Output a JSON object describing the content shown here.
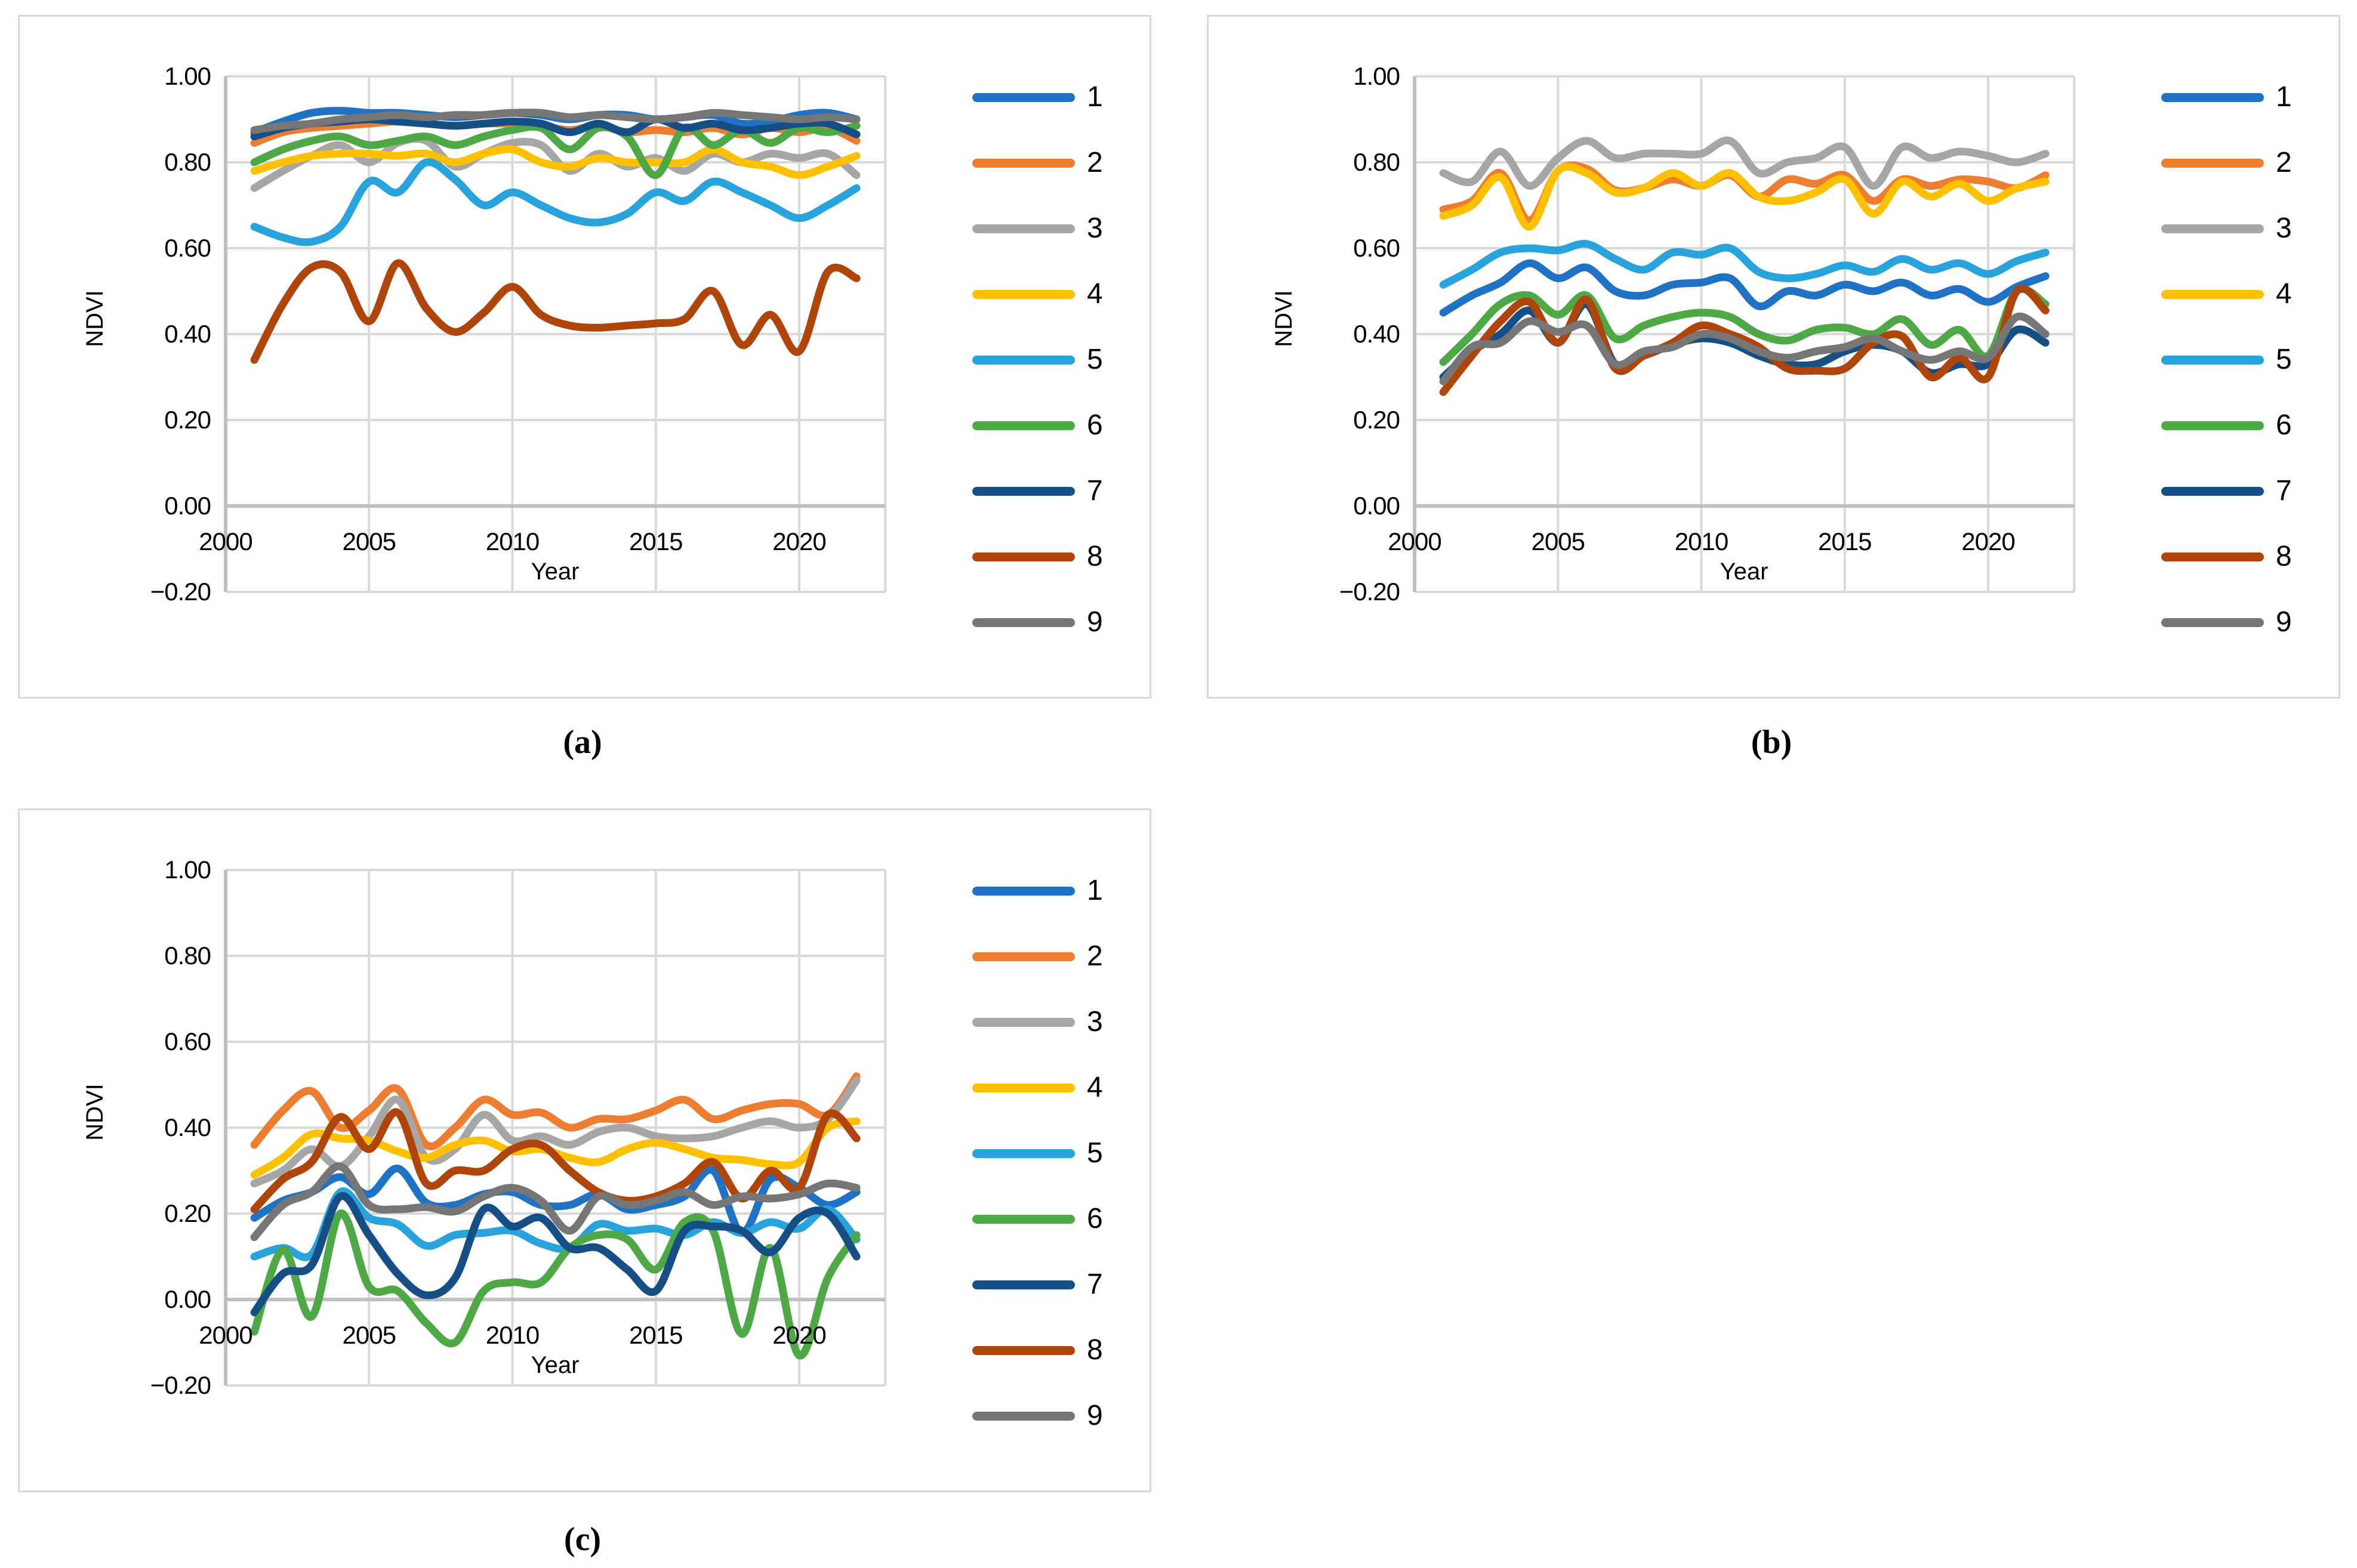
{
  "figure": {
    "background": "#FFFFFF",
    "grid_color": "#D9D9D9",
    "axis_color": "#BFBFBF",
    "text_color": "#000000",
    "y_axis": {
      "label": "NDVI",
      "tick_labels": [
        "1.00",
        "0.80",
        "0.60",
        "0.40",
        "0.20",
        "0.00",
        "−0.20"
      ],
      "tick_values": [
        1.0,
        0.8,
        0.6,
        0.4,
        0.2,
        0.0,
        -0.2
      ]
    },
    "x_axis": {
      "label": "Year",
      "tick_labels": [
        "2000",
        "2005",
        "2010",
        "2015",
        "2020"
      ],
      "tick_values": [
        2000,
        2005,
        2010,
        2015,
        2020
      ]
    },
    "legend": [
      {
        "label": "1",
        "color": "#1F72C4"
      },
      {
        "label": "2",
        "color": "#ED7D31"
      },
      {
        "label": "3",
        "color": "#A6A6A6"
      },
      {
        "label": "4",
        "color": "#FFC000"
      },
      {
        "label": "5",
        "color": "#29A3DC"
      },
      {
        "label": "6",
        "color": "#4EA846"
      },
      {
        "label": "7",
        "color": "#164F86"
      },
      {
        "label": "8",
        "color": "#B0450C"
      },
      {
        "label": "9",
        "color": "#767676"
      }
    ],
    "panels": [
      {
        "caption": "(a)"
      },
      {
        "caption": "(b)"
      },
      {
        "caption": "(c)"
      }
    ]
  },
  "chart_data": [
    {
      "type": "line",
      "panel": "a",
      "title": "",
      "xlabel": "Year",
      "ylabel": "NDVI",
      "xlim": [
        2000,
        2023
      ],
      "ylim": [
        -0.2,
        1.0
      ],
      "grid": true,
      "legend_position": "right",
      "x": [
        2001,
        2002,
        2003,
        2004,
        2005,
        2006,
        2007,
        2008,
        2009,
        2010,
        2011,
        2012,
        2013,
        2014,
        2015,
        2016,
        2017,
        2018,
        2019,
        2020,
        2021,
        2022
      ],
      "series": [
        {
          "name": "1",
          "color": "#1F72C4",
          "values": [
            0.87,
            0.895,
            0.915,
            0.92,
            0.915,
            0.915,
            0.91,
            0.905,
            0.91,
            0.915,
            0.91,
            0.9,
            0.91,
            0.91,
            0.9,
            0.905,
            0.91,
            0.89,
            0.895,
            0.91,
            0.915,
            0.9
          ]
        },
        {
          "name": "2",
          "color": "#ED7D31",
          "values": [
            0.845,
            0.87,
            0.88,
            0.885,
            0.89,
            0.895,
            0.89,
            0.885,
            0.89,
            0.89,
            0.885,
            0.875,
            0.885,
            0.87,
            0.875,
            0.87,
            0.88,
            0.865,
            0.88,
            0.87,
            0.88,
            0.85
          ]
        },
        {
          "name": "3",
          "color": "#A6A6A6",
          "values": [
            0.74,
            0.78,
            0.815,
            0.84,
            0.8,
            0.845,
            0.85,
            0.79,
            0.82,
            0.845,
            0.84,
            0.78,
            0.82,
            0.79,
            0.81,
            0.78,
            0.82,
            0.8,
            0.82,
            0.81,
            0.82,
            0.77
          ]
        },
        {
          "name": "4",
          "color": "#FFC000",
          "values": [
            0.78,
            0.8,
            0.815,
            0.82,
            0.82,
            0.815,
            0.82,
            0.8,
            0.82,
            0.83,
            0.8,
            0.79,
            0.81,
            0.8,
            0.8,
            0.8,
            0.83,
            0.8,
            0.79,
            0.77,
            0.79,
            0.815
          ]
        },
        {
          "name": "5",
          "color": "#29A3DC",
          "values": [
            0.65,
            0.625,
            0.615,
            0.65,
            0.755,
            0.73,
            0.8,
            0.76,
            0.7,
            0.73,
            0.7,
            0.67,
            0.66,
            0.68,
            0.73,
            0.71,
            0.755,
            0.73,
            0.7,
            0.67,
            0.7,
            0.74
          ]
        },
        {
          "name": "6",
          "color": "#4EA846",
          "values": [
            0.8,
            0.83,
            0.85,
            0.86,
            0.84,
            0.85,
            0.86,
            0.84,
            0.86,
            0.875,
            0.88,
            0.83,
            0.88,
            0.86,
            0.77,
            0.88,
            0.84,
            0.875,
            0.845,
            0.88,
            0.87,
            0.885
          ]
        },
        {
          "name": "7",
          "color": "#164F86",
          "values": [
            0.86,
            0.88,
            0.89,
            0.895,
            0.9,
            0.895,
            0.89,
            0.885,
            0.89,
            0.895,
            0.89,
            0.87,
            0.89,
            0.87,
            0.9,
            0.88,
            0.89,
            0.875,
            0.88,
            0.89,
            0.89,
            0.865
          ]
        },
        {
          "name": "8",
          "color": "#B0450C",
          "values": [
            0.34,
            0.47,
            0.555,
            0.545,
            0.43,
            0.565,
            0.46,
            0.405,
            0.45,
            0.51,
            0.445,
            0.42,
            0.415,
            0.42,
            0.425,
            0.435,
            0.5,
            0.375,
            0.445,
            0.36,
            0.545,
            0.53
          ]
        },
        {
          "name": "9",
          "color": "#767676",
          "values": [
            0.875,
            0.885,
            0.89,
            0.9,
            0.905,
            0.91,
            0.905,
            0.91,
            0.91,
            0.915,
            0.915,
            0.905,
            0.91,
            0.905,
            0.9,
            0.905,
            0.915,
            0.91,
            0.905,
            0.9,
            0.905,
            0.9
          ]
        }
      ]
    },
    {
      "type": "line",
      "panel": "b",
      "title": "",
      "xlabel": "Year",
      "ylabel": "NDVI",
      "xlim": [
        2000,
        2023
      ],
      "ylim": [
        -0.2,
        1.0
      ],
      "grid": true,
      "legend_position": "right",
      "x": [
        2001,
        2002,
        2003,
        2004,
        2005,
        2006,
        2007,
        2008,
        2009,
        2010,
        2011,
        2012,
        2013,
        2014,
        2015,
        2016,
        2017,
        2018,
        2019,
        2020,
        2021,
        2022
      ],
      "series": [
        {
          "name": "1",
          "color": "#1F72C4",
          "values": [
            0.45,
            0.49,
            0.52,
            0.565,
            0.53,
            0.555,
            0.5,
            0.49,
            0.515,
            0.52,
            0.53,
            0.465,
            0.5,
            0.49,
            0.515,
            0.5,
            0.52,
            0.49,
            0.505,
            0.475,
            0.51,
            0.535
          ]
        },
        {
          "name": "2",
          "color": "#ED7D31",
          "values": [
            0.69,
            0.71,
            0.775,
            0.665,
            0.78,
            0.785,
            0.735,
            0.74,
            0.76,
            0.745,
            0.77,
            0.72,
            0.76,
            0.75,
            0.77,
            0.71,
            0.76,
            0.745,
            0.76,
            0.755,
            0.74,
            0.77
          ]
        },
        {
          "name": "3",
          "color": "#A6A6A6",
          "values": [
            0.775,
            0.755,
            0.825,
            0.745,
            0.81,
            0.85,
            0.81,
            0.82,
            0.82,
            0.82,
            0.85,
            0.775,
            0.8,
            0.81,
            0.835,
            0.745,
            0.835,
            0.81,
            0.825,
            0.815,
            0.8,
            0.82
          ]
        },
        {
          "name": "4",
          "color": "#FFC000",
          "values": [
            0.675,
            0.7,
            0.765,
            0.65,
            0.78,
            0.775,
            0.73,
            0.74,
            0.775,
            0.745,
            0.775,
            0.72,
            0.71,
            0.73,
            0.76,
            0.68,
            0.755,
            0.72,
            0.75,
            0.71,
            0.74,
            0.755
          ]
        },
        {
          "name": "5",
          "color": "#29A3DC",
          "values": [
            0.515,
            0.55,
            0.59,
            0.6,
            0.595,
            0.61,
            0.575,
            0.55,
            0.59,
            0.585,
            0.6,
            0.545,
            0.53,
            0.54,
            0.56,
            0.545,
            0.575,
            0.55,
            0.565,
            0.54,
            0.57,
            0.59
          ]
        },
        {
          "name": "6",
          "color": "#4EA846",
          "values": [
            0.335,
            0.4,
            0.47,
            0.49,
            0.445,
            0.49,
            0.39,
            0.42,
            0.44,
            0.45,
            0.44,
            0.4,
            0.385,
            0.41,
            0.415,
            0.4,
            0.435,
            0.375,
            0.41,
            0.35,
            0.5,
            0.47
          ]
        },
        {
          "name": "7",
          "color": "#164F86",
          "values": [
            0.3,
            0.36,
            0.4,
            0.455,
            0.38,
            0.47,
            0.33,
            0.35,
            0.375,
            0.39,
            0.38,
            0.35,
            0.33,
            0.33,
            0.36,
            0.375,
            0.36,
            0.31,
            0.33,
            0.33,
            0.41,
            0.38
          ]
        },
        {
          "name": "8",
          "color": "#B0450C",
          "values": [
            0.265,
            0.35,
            0.43,
            0.475,
            0.38,
            0.48,
            0.32,
            0.35,
            0.38,
            0.42,
            0.4,
            0.37,
            0.32,
            0.315,
            0.32,
            0.38,
            0.395,
            0.3,
            0.345,
            0.3,
            0.5,
            0.455
          ]
        },
        {
          "name": "9",
          "color": "#767676",
          "values": [
            0.29,
            0.37,
            0.38,
            0.43,
            0.405,
            0.42,
            0.33,
            0.36,
            0.37,
            0.4,
            0.39,
            0.36,
            0.345,
            0.36,
            0.37,
            0.39,
            0.36,
            0.34,
            0.36,
            0.345,
            0.44,
            0.4
          ]
        }
      ]
    },
    {
      "type": "line",
      "panel": "c",
      "title": "",
      "xlabel": "Year",
      "ylabel": "NDVI",
      "xlim": [
        2000,
        2023
      ],
      "ylim": [
        -0.2,
        1.0
      ],
      "grid": true,
      "legend_position": "right",
      "x": [
        2001,
        2002,
        2003,
        2004,
        2005,
        2006,
        2007,
        2008,
        2009,
        2010,
        2011,
        2012,
        2013,
        2014,
        2015,
        2016,
        2017,
        2018,
        2019,
        2020,
        2021,
        2022
      ],
      "series": [
        {
          "name": "1",
          "color": "#1F72C4",
          "values": [
            0.19,
            0.23,
            0.25,
            0.285,
            0.245,
            0.305,
            0.225,
            0.22,
            0.245,
            0.25,
            0.22,
            0.22,
            0.245,
            0.21,
            0.22,
            0.24,
            0.3,
            0.155,
            0.28,
            0.26,
            0.22,
            0.25
          ]
        },
        {
          "name": "2",
          "color": "#ED7D31",
          "values": [
            0.36,
            0.44,
            0.485,
            0.4,
            0.44,
            0.49,
            0.36,
            0.4,
            0.465,
            0.43,
            0.435,
            0.4,
            0.42,
            0.42,
            0.44,
            0.465,
            0.42,
            0.44,
            0.455,
            0.455,
            0.43,
            0.52
          ]
        },
        {
          "name": "3",
          "color": "#A6A6A6",
          "values": [
            0.27,
            0.3,
            0.35,
            0.31,
            0.38,
            0.465,
            0.33,
            0.35,
            0.43,
            0.37,
            0.38,
            0.36,
            0.39,
            0.4,
            0.38,
            0.375,
            0.38,
            0.4,
            0.415,
            0.4,
            0.42,
            0.51
          ]
        },
        {
          "name": "4",
          "color": "#FFC000",
          "values": [
            0.29,
            0.33,
            0.385,
            0.375,
            0.37,
            0.345,
            0.33,
            0.36,
            0.37,
            0.345,
            0.35,
            0.33,
            0.32,
            0.35,
            0.365,
            0.35,
            0.33,
            0.325,
            0.315,
            0.32,
            0.4,
            0.415
          ]
        },
        {
          "name": "5",
          "color": "#29A3DC",
          "values": [
            0.1,
            0.12,
            0.105,
            0.25,
            0.19,
            0.175,
            0.125,
            0.15,
            0.155,
            0.16,
            0.13,
            0.12,
            0.175,
            0.16,
            0.165,
            0.15,
            0.18,
            0.155,
            0.18,
            0.165,
            0.21,
            0.14
          ]
        },
        {
          "name": "6",
          "color": "#4EA846",
          "values": [
            -0.075,
            0.115,
            -0.04,
            0.2,
            0.03,
            0.02,
            -0.055,
            -0.1,
            0.02,
            0.04,
            0.04,
            0.12,
            0.15,
            0.14,
            0.07,
            0.18,
            0.16,
            -0.08,
            0.12,
            -0.13,
            0.05,
            0.15
          ]
        },
        {
          "name": "7",
          "color": "#164F86",
          "values": [
            -0.03,
            0.06,
            0.08,
            0.24,
            0.15,
            0.06,
            0.01,
            0.05,
            0.21,
            0.17,
            0.19,
            0.12,
            0.12,
            0.07,
            0.02,
            0.16,
            0.17,
            0.16,
            0.11,
            0.19,
            0.2,
            0.1
          ]
        },
        {
          "name": "8",
          "color": "#B0450C",
          "values": [
            0.21,
            0.28,
            0.32,
            0.425,
            0.35,
            0.435,
            0.27,
            0.3,
            0.3,
            0.35,
            0.36,
            0.3,
            0.25,
            0.23,
            0.24,
            0.27,
            0.32,
            0.235,
            0.3,
            0.26,
            0.43,
            0.375
          ]
        },
        {
          "name": "9",
          "color": "#767676",
          "values": [
            0.145,
            0.22,
            0.25,
            0.31,
            0.22,
            0.21,
            0.215,
            0.205,
            0.24,
            0.26,
            0.23,
            0.16,
            0.24,
            0.22,
            0.23,
            0.25,
            0.22,
            0.24,
            0.235,
            0.245,
            0.27,
            0.26
          ]
        }
      ]
    }
  ]
}
